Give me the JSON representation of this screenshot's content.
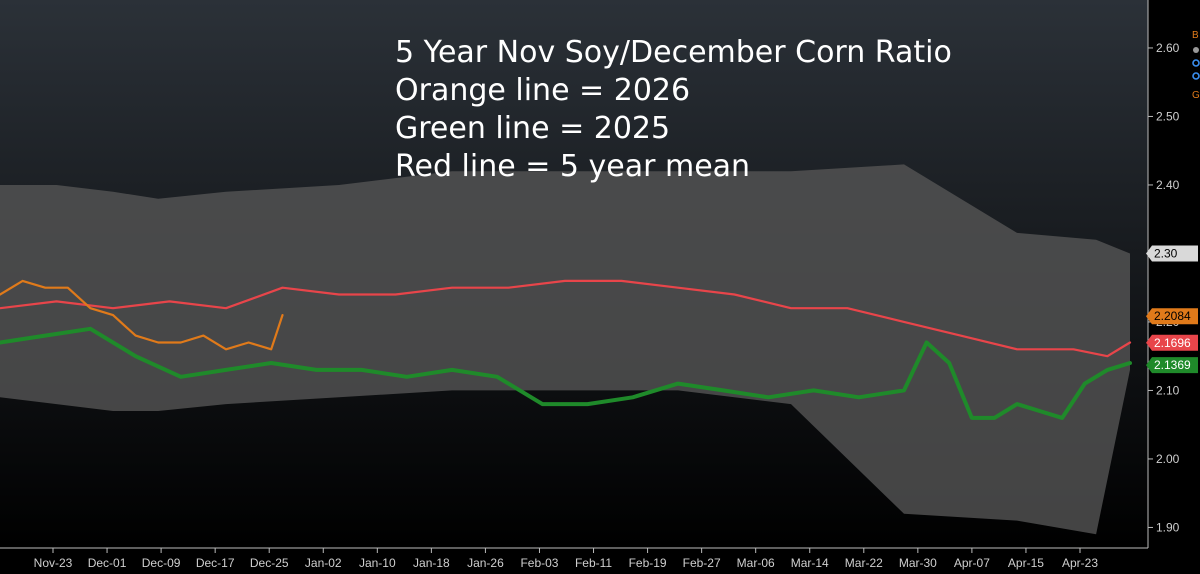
{
  "chart_data": {
    "type": "line",
    "title_lines": [
      "5 Year Nov Soy/December Corn Ratio",
      "Orange line = 2026",
      "Green line = 2025",
      "Red line = 5 year mean"
    ],
    "xlabel": "",
    "ylabel": "",
    "ylim": [
      1.87,
      2.67
    ],
    "x_ticks": [
      "Nov-23",
      "Dec-01",
      "Dec-09",
      "Dec-17",
      "Dec-25",
      "Jan-02",
      "Jan-10",
      "Jan-18",
      "Jan-26",
      "Feb-03",
      "Feb-11",
      "Feb-19",
      "Feb-27",
      "Mar-06",
      "Mar-14",
      "Mar-22",
      "Mar-30",
      "Apr-07",
      "Apr-15",
      "Apr-23"
    ],
    "y_ticks": [
      "1.90",
      "2.00",
      "2.10",
      "2.20",
      "2.30",
      "2.40",
      "2.50",
      "2.60"
    ],
    "y_tick_values": [
      1.9,
      2.0,
      2.1,
      2.2,
      2.3,
      2.4,
      2.5,
      2.6
    ],
    "range_band": {
      "name": "5 year range",
      "x": [
        0,
        5,
        10,
        14,
        20,
        30,
        40,
        50,
        60,
        70,
        80,
        90,
        97,
        100
      ],
      "upper": [
        2.4,
        2.4,
        2.39,
        2.38,
        2.39,
        2.4,
        2.42,
        2.42,
        2.42,
        2.42,
        2.43,
        2.33,
        2.32,
        2.3
      ],
      "lower": [
        2.09,
        2.08,
        2.07,
        2.07,
        2.08,
        2.09,
        2.1,
        2.1,
        2.1,
        2.08,
        1.92,
        1.91,
        1.89,
        2.13
      ]
    },
    "series": [
      {
        "name": "2026",
        "color": "#e07a1a",
        "x": [
          0,
          2,
          4,
          6,
          8,
          10,
          12,
          14,
          16,
          18,
          20,
          22,
          24,
          25
        ],
        "values": [
          2.24,
          2.26,
          2.25,
          2.25,
          2.22,
          2.21,
          2.18,
          2.17,
          2.17,
          2.18,
          2.16,
          2.17,
          2.16,
          2.21
        ],
        "last_label": "2.2084"
      },
      {
        "name": "2025",
        "color": "#1f8a2a",
        "x": [
          0,
          4,
          8,
          12,
          16,
          20,
          24,
          28,
          32,
          36,
          40,
          44,
          48,
          52,
          56,
          60,
          64,
          68,
          72,
          76,
          80,
          82,
          84,
          86,
          88,
          90,
          92,
          94,
          96,
          98,
          100
        ],
        "values": [
          2.17,
          2.18,
          2.19,
          2.15,
          2.12,
          2.13,
          2.14,
          2.13,
          2.13,
          2.12,
          2.13,
          2.12,
          2.08,
          2.08,
          2.09,
          2.11,
          2.1,
          2.09,
          2.1,
          2.09,
          2.1,
          2.17,
          2.14,
          2.06,
          2.06,
          2.08,
          2.07,
          2.06,
          2.11,
          2.13,
          2.14
        ],
        "last_label": "2.1369"
      },
      {
        "name": "5 year mean",
        "color": "#e8454a",
        "x": [
          0,
          5,
          10,
          15,
          20,
          25,
          30,
          35,
          40,
          45,
          50,
          55,
          60,
          65,
          70,
          75,
          80,
          85,
          90,
          95,
          98,
          100
        ],
        "values": [
          2.22,
          2.23,
          2.22,
          2.23,
          2.22,
          2.25,
          2.24,
          2.24,
          2.25,
          2.25,
          2.26,
          2.26,
          2.25,
          2.24,
          2.22,
          2.22,
          2.2,
          2.18,
          2.16,
          2.16,
          2.15,
          2.17
        ],
        "last_label": "2.1696"
      }
    ],
    "range_upper_label": "2.30",
    "legend_fragments": [
      "B",
      "G"
    ],
    "colors": {
      "orange": "#e07a1a",
      "green": "#1f8a2a",
      "red": "#e8454a",
      "band": "#555555",
      "background_top": "#2b3138",
      "background_bottom": "#000000"
    }
  }
}
